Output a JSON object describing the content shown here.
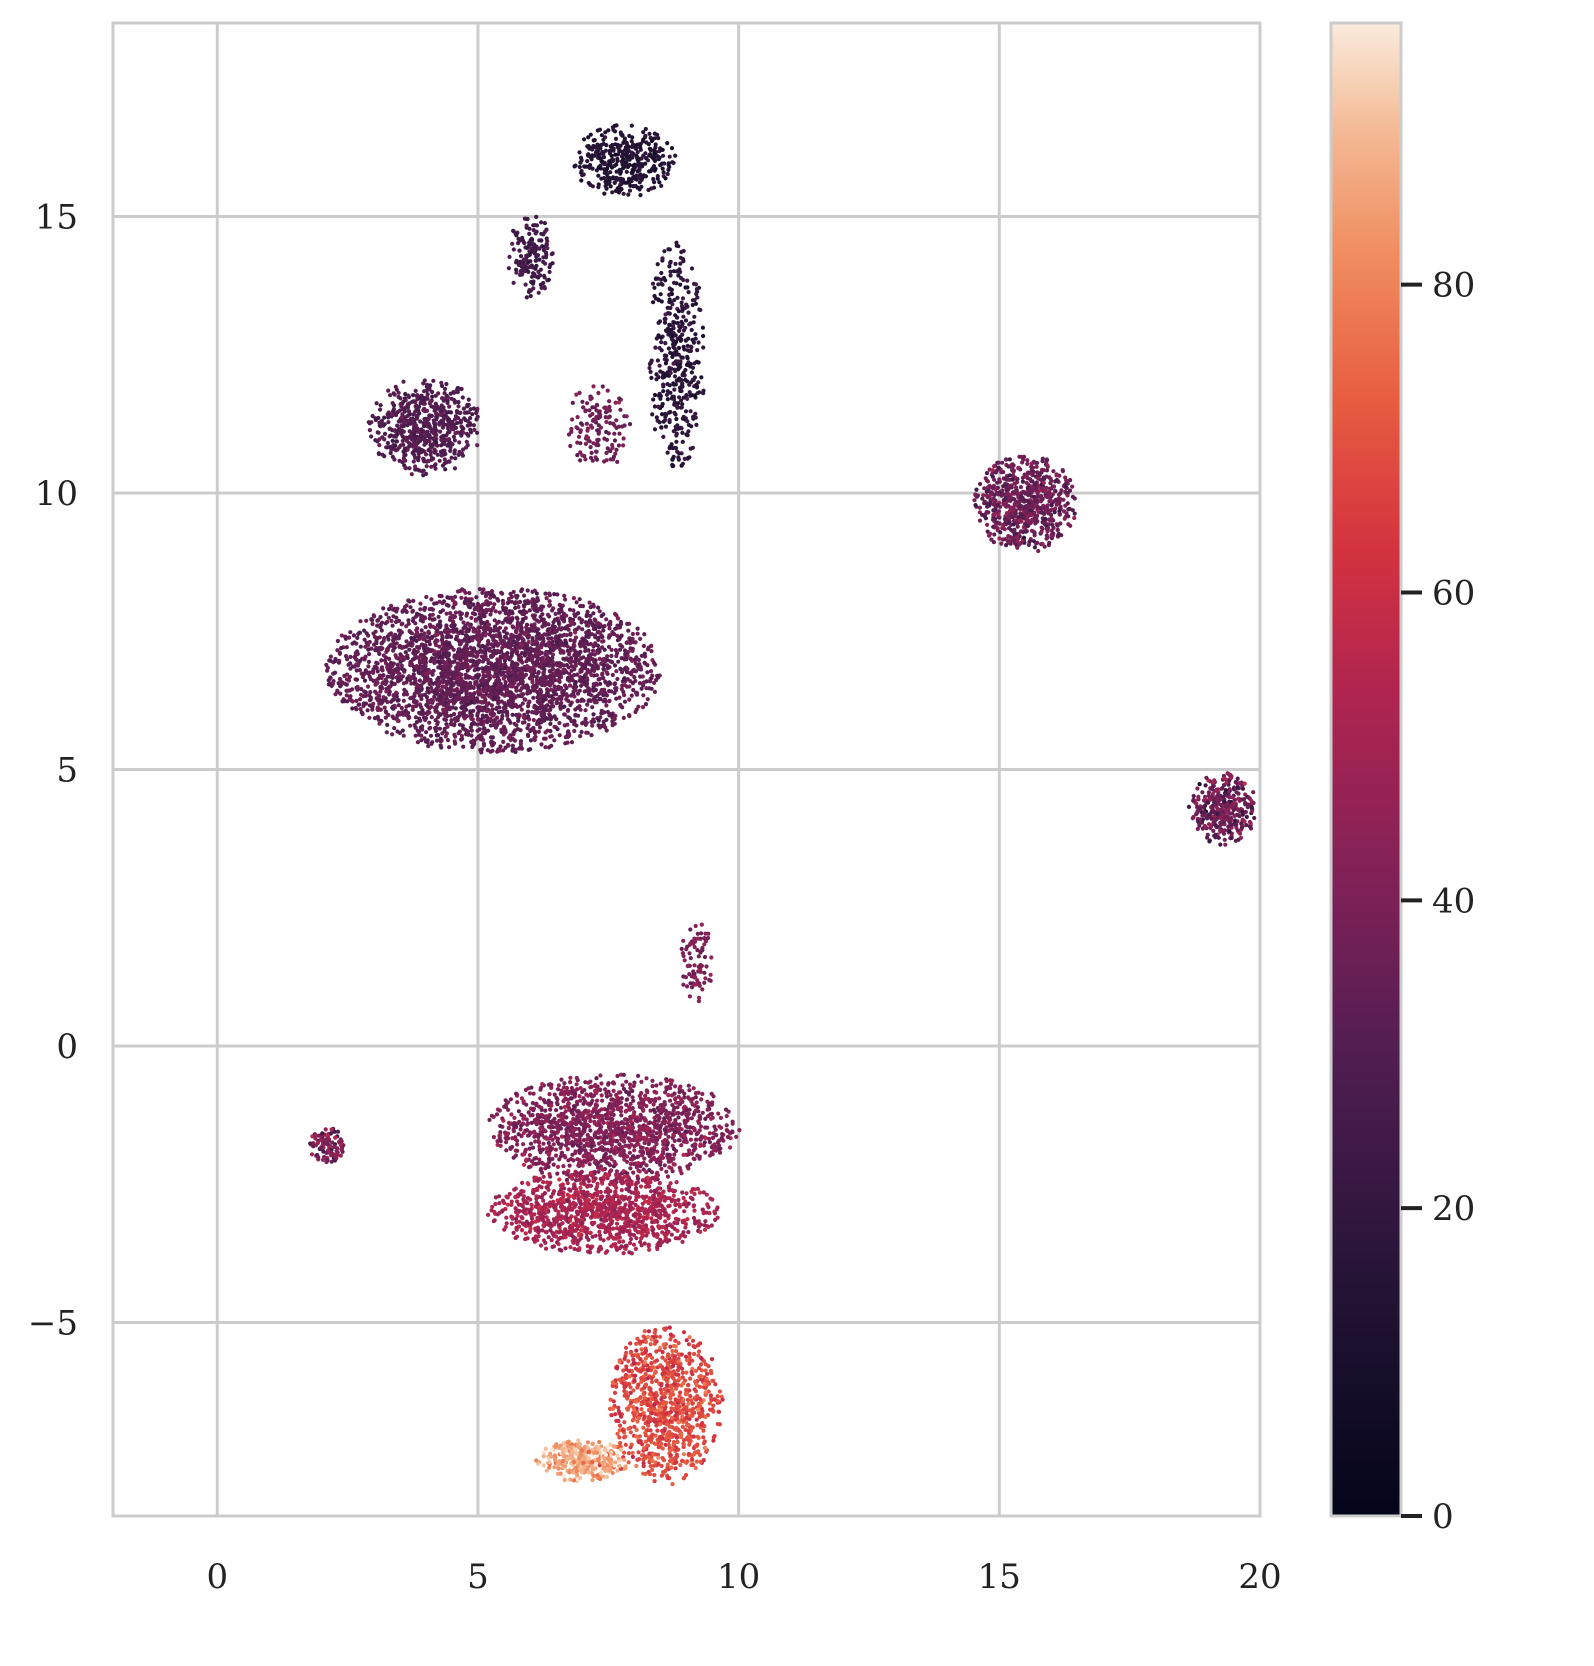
{
  "chart_data": {
    "type": "scatter",
    "title": "",
    "xlabel": "",
    "ylabel": "",
    "xlim": [
      -2,
      20
    ],
    "ylim": [
      -8.5,
      18.5
    ],
    "xticks": [
      0,
      5,
      10,
      15,
      20
    ],
    "xtick_labels": [
      "0",
      "5",
      "10",
      "15",
      "20"
    ],
    "yticks": [
      -5,
      0,
      5,
      10,
      15
    ],
    "ytick_labels": [
      "−5",
      "0",
      "5",
      "10",
      "15"
    ],
    "grid": true,
    "colormap": "rocket",
    "colorbar": {
      "vmin": 0,
      "vmax": 97,
      "ticks": [
        0,
        20,
        40,
        60,
        80
      ],
      "tick_labels": [
        "0",
        "20",
        "40",
        "60",
        "80"
      ]
    },
    "clusters": [
      {
        "id": "main-upper-left",
        "center": [
          5.3,
          6.8
        ],
        "spread": [
          2.9,
          1.35
        ],
        "n": 3400,
        "value_mean": 34,
        "value_sd": 3
      },
      {
        "id": "lower-mid-top",
        "center": [
          7.6,
          -1.5
        ],
        "spread": [
          2.2,
          0.9
        ],
        "n": 1400,
        "value_mean": 42,
        "value_sd": 4
      },
      {
        "id": "lower-mid-bottom",
        "center": [
          7.4,
          -3.0
        ],
        "spread": [
          2.0,
          0.7
        ],
        "n": 1100,
        "value_mean": 52,
        "value_sd": 4
      },
      {
        "id": "bottom-tail",
        "center": [
          8.6,
          -6.5
        ],
        "spread": [
          1.0,
          1.3
        ],
        "n": 900,
        "value_mean": 68,
        "value_sd": 5
      },
      {
        "id": "bottom-light-tip",
        "center": [
          7.0,
          -7.5
        ],
        "spread": [
          0.8,
          0.35
        ],
        "n": 350,
        "value_mean": 86,
        "value_sd": 6
      },
      {
        "id": "top-head",
        "center": [
          7.8,
          16.0
        ],
        "spread": [
          0.9,
          0.6
        ],
        "n": 380,
        "value_mean": 15,
        "value_sd": 3
      },
      {
        "id": "top-stem",
        "center": [
          8.8,
          12.5
        ],
        "spread": [
          0.5,
          2.0
        ],
        "n": 420,
        "value_mean": 18,
        "value_sd": 4
      },
      {
        "id": "top-left-arm",
        "center": [
          6.0,
          14.3
        ],
        "spread": [
          0.4,
          0.7
        ],
        "n": 160,
        "value_mean": 25,
        "value_sd": 3
      },
      {
        "id": "upper-left-arc",
        "center": [
          4.0,
          11.2
        ],
        "spread": [
          1.0,
          0.8
        ],
        "n": 600,
        "value_mean": 30,
        "value_sd": 3
      },
      {
        "id": "upper-middle-ring",
        "center": [
          7.3,
          11.2
        ],
        "spread": [
          0.6,
          0.7
        ],
        "n": 140,
        "value_mean": 38,
        "value_sd": 4
      },
      {
        "id": "right-upper",
        "center": [
          15.5,
          9.8
        ],
        "spread": [
          0.9,
          0.8
        ],
        "n": 700,
        "value_mean": 36,
        "value_sd": 6
      },
      {
        "id": "right-mid",
        "center": [
          19.3,
          4.3
        ],
        "spread": [
          0.6,
          0.6
        ],
        "n": 350,
        "value_mean": 36,
        "value_sd": 9
      },
      {
        "id": "small-left",
        "center": [
          2.1,
          -1.8
        ],
        "spread": [
          0.3,
          0.3
        ],
        "n": 110,
        "value_mean": 40,
        "value_sd": 8
      },
      {
        "id": "small-stalk",
        "center": [
          9.2,
          1.5
        ],
        "spread": [
          0.3,
          0.7
        ],
        "n": 80,
        "value_mean": 40,
        "value_sd": 4
      }
    ]
  }
}
